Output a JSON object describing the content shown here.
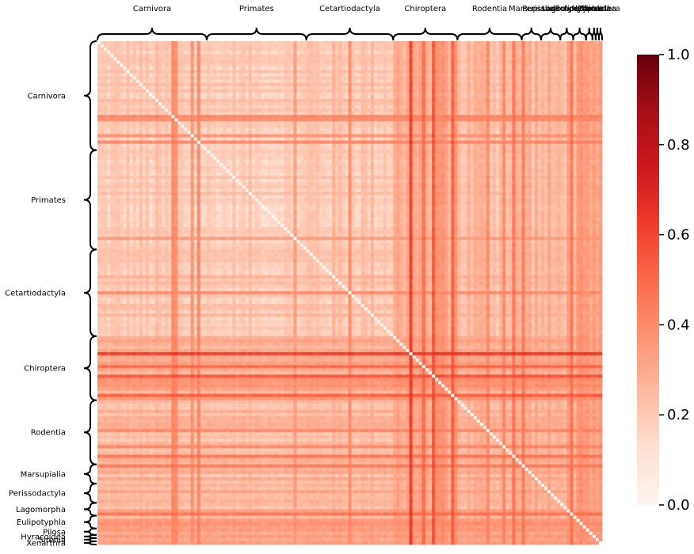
{
  "chart_data": {
    "type": "heatmap",
    "title": "",
    "xlabel": "",
    "ylabel": "",
    "groups": [
      {
        "name": "Carnivora",
        "size": 34
      },
      {
        "name": "Primates",
        "size": 31
      },
      {
        "name": "Cetartiodactyla",
        "size": 27
      },
      {
        "name": "Chiroptera",
        "size": 20
      },
      {
        "name": "Rodentia",
        "size": 20
      },
      {
        "name": "Marsupialia",
        "size": 6
      },
      {
        "name": "Perissodactyla",
        "size": 6
      },
      {
        "name": "Lagomorpha",
        "size": 4
      },
      {
        "name": "Eulipotyphla",
        "size": 4
      },
      {
        "name": "Pilosa",
        "size": 2
      },
      {
        "name": "Hyracoidea",
        "size": 1
      },
      {
        "name": "Sirenia",
        "size": 1
      },
      {
        "name": "Xenarthra",
        "size": 1
      }
    ],
    "diagonal_value": 0.0,
    "colorbar": {
      "min": 0.0,
      "max": 1.0,
      "ticks": [
        "0.0",
        "0.2",
        "0.4",
        "0.6",
        "0.8",
        "1.0"
      ],
      "colormap": [
        "#fff5f0",
        "#fee0d2",
        "#fcbba1",
        "#fc9272",
        "#fb6a4a",
        "#ef3b2c",
        "#cb181d",
        "#a50f15",
        "#67000d"
      ]
    }
  }
}
